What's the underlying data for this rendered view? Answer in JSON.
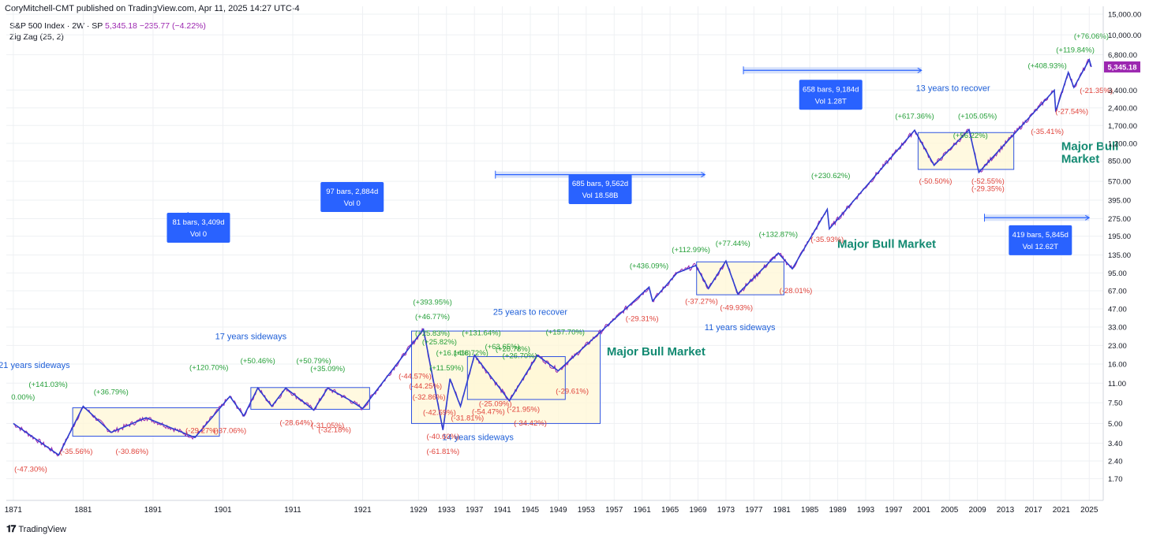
{
  "header": {
    "published": "CoryMitchell-CMT published on TradingView.com, Apr 11, 2025 14:27 UTC-4",
    "symbol": "S&P 500 Index · 2W · SP",
    "last": "5,345.18",
    "change": "−235.77 (−4.22%)",
    "indicator": "Zig Zag (25, 2)"
  },
  "footer": {
    "brand": "TradingView"
  },
  "colors": {
    "price": "#9c27b0",
    "zigzag": "#2f3fd0",
    "pos": "#26a03a",
    "neg": "#e0443c",
    "note": "#1e5fd8",
    "bull": "#138a72",
    "box_fill": "#fff7d6",
    "box_stroke": "#2f53e0",
    "badge": "#2962ff"
  },
  "chart_data": {
    "type": "line",
    "title": "S&P 500 Index · 2W · SP",
    "y_scale": "log",
    "ylim": [
      1.2,
      15000
    ],
    "xlim": [
      1870,
      2027
    ],
    "y_ticks": [
      {
        "v": 15000,
        "t": "15,000.00"
      },
      {
        "v": 10000,
        "t": "10,000.00"
      },
      {
        "v": 6800,
        "t": "6,800.00"
      },
      {
        "v": 3400,
        "t": "3,400.00"
      },
      {
        "v": 2400,
        "t": "2,400.00"
      },
      {
        "v": 1700,
        "t": "1,700.00"
      },
      {
        "v": 1200,
        "t": "1,200.00"
      },
      {
        "v": 850,
        "t": "850.00"
      },
      {
        "v": 570,
        "t": "570.00"
      },
      {
        "v": 395,
        "t": "395.00"
      },
      {
        "v": 275,
        "t": "275.00"
      },
      {
        "v": 195,
        "t": "195.00"
      },
      {
        "v": 135,
        "t": "135.00"
      },
      {
        "v": 95,
        "t": "95.00"
      },
      {
        "v": 67,
        "t": "67.00"
      },
      {
        "v": 47,
        "t": "47.00"
      },
      {
        "v": 33,
        "t": "33.00"
      },
      {
        "v": 23,
        "t": "23.00"
      },
      {
        "v": 16,
        "t": "16.00"
      },
      {
        "v": 11,
        "t": "11.00"
      },
      {
        "v": 7.5,
        "t": "7.50"
      },
      {
        "v": 5,
        "t": "5.00"
      },
      {
        "v": 3.4,
        "t": "3.40"
      },
      {
        "v": 2.4,
        "t": "2.40"
      },
      {
        "v": 1.7,
        "t": "1.70"
      }
    ],
    "x_ticks": [
      "1871",
      "1881",
      "1891",
      "1901",
      "1911",
      "1921",
      "1929",
      "1933",
      "1937",
      "1941",
      "1945",
      "1949",
      "1953",
      "1957",
      "1961",
      "1965",
      "1969",
      "1973",
      "1977",
      "1981",
      "1985",
      "1989",
      "1993",
      "1997",
      "2001",
      "2005",
      "2009",
      "2013",
      "2017",
      "2021",
      "2025"
    ],
    "x_tick_years": [
      1871,
      1881,
      1891,
      1901,
      1911,
      1921,
      1929,
      1933,
      1937,
      1941,
      1945,
      1949,
      1953,
      1957,
      1961,
      1965,
      1969,
      1973,
      1977,
      1981,
      1985,
      1989,
      1993,
      1997,
      2001,
      2005,
      2009,
      2013,
      2017,
      2021,
      2025
    ],
    "last_price_label": "5,345.18",
    "last_price_value": 5345.18,
    "zigzag": [
      [
        1871,
        5.0
      ],
      [
        1877.5,
        2.7
      ],
      [
        1881,
        7.0
      ],
      [
        1885,
        4.2
      ],
      [
        1890,
        5.6
      ],
      [
        1897,
        3.8
      ],
      [
        1902,
        8.5
      ],
      [
        1904,
        5.8
      ],
      [
        1906,
        10.0
      ],
      [
        1908,
        7.0
      ],
      [
        1910,
        10.0
      ],
      [
        1914,
        6.5
      ],
      [
        1916,
        10.0
      ],
      [
        1919,
        8.0
      ],
      [
        1921,
        6.7
      ],
      [
        1929.7,
        31.5
      ],
      [
        1932.5,
        4.4
      ],
      [
        1933.5,
        12.0
      ],
      [
        1935,
        7.0
      ],
      [
        1937,
        19.0
      ],
      [
        1942,
        7.8
      ],
      [
        1946,
        19.0
      ],
      [
        1949,
        14.0
      ],
      [
        1962,
        72
      ],
      [
        1962.5,
        55
      ],
      [
        1966,
        95
      ],
      [
        1968.7,
        110
      ],
      [
        1970.5,
        70
      ],
      [
        1973,
        120
      ],
      [
        1974.7,
        63
      ],
      [
        1980.5,
        140
      ],
      [
        1982.5,
        103
      ],
      [
        1987.5,
        330
      ],
      [
        1987.8,
        225
      ],
      [
        2000,
        1550
      ],
      [
        2002.8,
        780
      ],
      [
        2007.8,
        1565
      ],
      [
        2009.2,
        680
      ],
      [
        2020,
        3390
      ],
      [
        2020.2,
        2235
      ],
      [
        2022,
        4800
      ],
      [
        2022.8,
        3580
      ],
      [
        2025,
        6150
      ],
      [
        2025.3,
        5345
      ]
    ],
    "boxes": [
      {
        "x1": 1879.5,
        "x2": 1900.5,
        "y1": 3.9,
        "y2": 6.8
      },
      {
        "x1": 1905,
        "x2": 1922,
        "y1": 6.6,
        "y2": 10.1
      },
      {
        "x1": 1928,
        "x2": 1955,
        "y1": 5.0,
        "y2": 30.5
      },
      {
        "x1": 1936,
        "x2": 1950,
        "y1": 8.0,
        "y2": 18.5
      },
      {
        "x1": 1968.8,
        "x2": 1981.3,
        "y1": 62,
        "y2": 118
      },
      {
        "x1": 2000.5,
        "x2": 2014.2,
        "y1": 720,
        "y2": 1480
      }
    ],
    "range_rulers": [
      {
        "x1": 1896,
        "x2": 1900,
        "y": 290,
        "label": "81 bars, 3,409d",
        "vol": "Vol 0",
        "lx": 1897.5,
        "ly": 230
      },
      {
        "x1": 1917.5,
        "x2": 1922.5,
        "y": 510,
        "label": "97 bars, 2,884d",
        "vol": "Vol 0",
        "lx": 1919.5,
        "ly": 420
      },
      {
        "x1": 1940,
        "x2": 1970,
        "y": 650,
        "label": "685 bars, 9,562d",
        "vol": "Vol 18.58B",
        "lx": 1955,
        "ly": 490
      },
      {
        "x1": 1975.5,
        "x2": 2001,
        "y": 5000,
        "label": "658 bars, 9,184d",
        "vol": "Vol 1.28T",
        "lx": 1988,
        "ly": 3100
      },
      {
        "x1": 2010,
        "x2": 2025,
        "y": 280,
        "label": "419 bars, 5,845d",
        "vol": "Vol 12.62T",
        "lx": 2018,
        "ly": 180
      }
    ],
    "annotations": [
      {
        "t": "21 years sideways",
        "x": 1874,
        "y": 14.8,
        "k": "note"
      },
      {
        "t": "17 years sideways",
        "x": 1905,
        "y": 26.0,
        "k": "note"
      },
      {
        "t": "25 years to recover",
        "x": 1945,
        "y": 42.0,
        "k": "note"
      },
      {
        "t": "14 years sideways",
        "x": 1937.5,
        "y": 3.6,
        "k": "note"
      },
      {
        "t": "11 years sideways",
        "x": 1975,
        "y": 31.0,
        "k": "note"
      },
      {
        "t": "13 years to recover",
        "x": 2005.5,
        "y": 3350,
        "k": "note"
      },
      {
        "t": "Major Bull Market",
        "x": 1963,
        "y": 19.0,
        "k": "bull"
      },
      {
        "t": "Major Bull Market",
        "x": 1996,
        "y": 155,
        "k": "bull"
      },
      {
        "t": "Major Bull",
        "x": 2021,
        "y": 1050,
        "k": "bull"
      },
      {
        "t": "Market",
        "x": 2021,
        "y": 820,
        "k": "bull"
      },
      {
        "t": "0.00%)",
        "x": 1870.7,
        "y": 8.0,
        "k": "pos"
      },
      {
        "t": "(+141.03%)",
        "x": 1876,
        "y": 10.2,
        "k": "pos"
      },
      {
        "t": "(+36.79%)",
        "x": 1885,
        "y": 8.8,
        "k": "pos"
      },
      {
        "t": "(+120.70%)",
        "x": 1899,
        "y": 14.2,
        "k": "pos"
      },
      {
        "t": "(+50.46%)",
        "x": 1906,
        "y": 16.3,
        "k": "pos"
      },
      {
        "t": "(+50.79%)",
        "x": 1914,
        "y": 16.3,
        "k": "pos"
      },
      {
        "t": "(+35.09%)",
        "x": 1916,
        "y": 13.9,
        "k": "pos"
      },
      {
        "t": "(+393.95%)",
        "x": 1931,
        "y": 51.0,
        "k": "pos"
      },
      {
        "t": "(+46.77%)",
        "x": 1931,
        "y": 38.5,
        "k": "pos"
      },
      {
        "t": "(+25.83%)",
        "x": 1931,
        "y": 27.8,
        "k": "pos"
      },
      {
        "t": "(+25.82%)",
        "x": 1932,
        "y": 23.5,
        "k": "pos"
      },
      {
        "t": "(+16.14%)",
        "x": 1934,
        "y": 18.9,
        "k": "pos"
      },
      {
        "t": "(+18.72%)",
        "x": 1936.5,
        "y": 18.9,
        "k": "pos"
      },
      {
        "t": "(+11.59%)",
        "x": 1933,
        "y": 14.1,
        "k": "pos"
      },
      {
        "t": "(+131.64%)",
        "x": 1938,
        "y": 28.0,
        "k": "pos"
      },
      {
        "t": "(+63.65%)",
        "x": 1941,
        "y": 21.5,
        "k": "pos"
      },
      {
        "t": "(+20.78%)",
        "x": 1942.5,
        "y": 20.5,
        "k": "pos"
      },
      {
        "t": "(+26.70%)",
        "x": 1943.5,
        "y": 18.0,
        "k": "pos"
      },
      {
        "t": "(+157.70%)",
        "x": 1950,
        "y": 28.5,
        "k": "pos"
      },
      {
        "t": "(+436.09%)",
        "x": 1962,
        "y": 104,
        "k": "pos"
      },
      {
        "t": "(+112.99%)",
        "x": 1968,
        "y": 143,
        "k": "pos"
      },
      {
        "t": "(+77.44%)",
        "x": 1974,
        "y": 162,
        "k": "pos"
      },
      {
        "t": "(+132.87%)",
        "x": 1980.5,
        "y": 192,
        "k": "pos"
      },
      {
        "t": "(+230.62%)",
        "x": 1988,
        "y": 610,
        "k": "pos"
      },
      {
        "t": "(+617.36%)",
        "x": 2000,
        "y": 1950,
        "k": "pos"
      },
      {
        "t": "(+105.05%)",
        "x": 2009,
        "y": 1950,
        "k": "pos"
      },
      {
        "t": "(+56.22%)",
        "x": 2008,
        "y": 1330,
        "k": "pos"
      },
      {
        "t": "(+408.93%)",
        "x": 2019,
        "y": 5200,
        "k": "pos"
      },
      {
        "t": "(+119.84%)",
        "x": 2023,
        "y": 7100,
        "k": "pos"
      },
      {
        "t": "(+76.06%)",
        "x": 2025.3,
        "y": 9300,
        "k": "pos"
      },
      {
        "t": "(-47.30%)",
        "x": 1873.5,
        "y": 1.95,
        "k": "neg"
      },
      {
        "t": "(-35.56%)",
        "x": 1880,
        "y": 2.75,
        "k": "neg"
      },
      {
        "t": "(-30.86%)",
        "x": 1888,
        "y": 2.75,
        "k": "neg"
      },
      {
        "t": "(-29.27%)",
        "x": 1898,
        "y": 4.15,
        "k": "neg"
      },
      {
        "t": "(-37.06%)",
        "x": 1902,
        "y": 4.15,
        "k": "neg"
      },
      {
        "t": "(-28.64%)",
        "x": 1911.5,
        "y": 4.85,
        "k": "neg"
      },
      {
        "t": "(-32.18%)",
        "x": 1917,
        "y": 4.2,
        "k": "neg"
      },
      {
        "t": "(-31.05%)",
        "x": 1916,
        "y": 4.6,
        "k": "neg"
      },
      {
        "t": "(-44.57%)",
        "x": 1928.5,
        "y": 12.0,
        "k": "neg"
      },
      {
        "t": "(-44.25%)",
        "x": 1930,
        "y": 9.9,
        "k": "neg"
      },
      {
        "t": "(-32.86%)",
        "x": 1930.5,
        "y": 8.0,
        "k": "neg"
      },
      {
        "t": "(-42.59%)",
        "x": 1932,
        "y": 5.9,
        "k": "neg"
      },
      {
        "t": "(-31.81%)",
        "x": 1936,
        "y": 5.3,
        "k": "neg"
      },
      {
        "t": "(-40.60%)",
        "x": 1932.5,
        "y": 3.7,
        "k": "neg"
      },
      {
        "t": "(-61.81%)",
        "x": 1932.5,
        "y": 2.75,
        "k": "neg"
      },
      {
        "t": "(-25.09%)",
        "x": 1940,
        "y": 7.0,
        "k": "neg"
      },
      {
        "t": "(-54.47%)",
        "x": 1939,
        "y": 6.0,
        "k": "neg"
      },
      {
        "t": "(-21.95%)",
        "x": 1944,
        "y": 6.3,
        "k": "neg"
      },
      {
        "t": "(-34.42%)",
        "x": 1945,
        "y": 4.8,
        "k": "neg"
      },
      {
        "t": "(-29.61%)",
        "x": 1951,
        "y": 9.0,
        "k": "neg"
      },
      {
        "t": "(-29.31%)",
        "x": 1961,
        "y": 37.0,
        "k": "neg"
      },
      {
        "t": "(-37.27%)",
        "x": 1969.5,
        "y": 52.0,
        "k": "neg"
      },
      {
        "t": "(-49.93%)",
        "x": 1974.5,
        "y": 46.0,
        "k": "neg"
      },
      {
        "t": "(-28.01%)",
        "x": 1983,
        "y": 64.0,
        "k": "neg"
      },
      {
        "t": "(-35.93%)",
        "x": 1987.5,
        "y": 175,
        "k": "neg"
      },
      {
        "t": "(-50.50%)",
        "x": 2003,
        "y": 545,
        "k": "neg"
      },
      {
        "t": "(-52.55%)",
        "x": 2010.5,
        "y": 545,
        "k": "neg"
      },
      {
        "t": "(-29.35%)",
        "x": 2010.5,
        "y": 470,
        "k": "neg"
      },
      {
        "t": "(-35.41%)",
        "x": 2019,
        "y": 1440,
        "k": "neg"
      },
      {
        "t": "(-27.54%)",
        "x": 2022.5,
        "y": 2130,
        "k": "neg"
      },
      {
        "t": "(-21.35%)",
        "x": 2026,
        "y": 3200,
        "k": "neg"
      }
    ]
  }
}
